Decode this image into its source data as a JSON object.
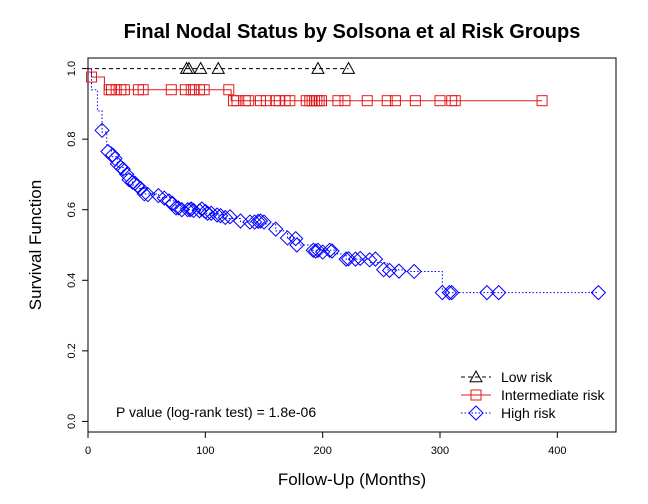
{
  "chart_data": {
    "type": "line",
    "subtype": "kaplan-meier",
    "title": "Final Nodal Status by Solsona et al Risk Groups",
    "xlabel": "Follow-Up (Months)",
    "ylabel": "Survival Function",
    "xlim": [
      0,
      450
    ],
    "ylim": [
      -0.03,
      1.03
    ],
    "xticks": [
      0,
      100,
      200,
      300,
      400
    ],
    "yticks": [
      0.0,
      0.2,
      0.4,
      0.6,
      0.8,
      1.0
    ],
    "xtick_labels": [
      "0",
      "100",
      "200",
      "300",
      "400"
    ],
    "ytick_labels": [
      "0.0",
      "0.2",
      "0.4",
      "0.6",
      "0.8",
      "1.0"
    ],
    "grid": false,
    "legend_position": "bottom-right",
    "annotation": "P value (log-rank test) = 1.8e-06",
    "series": [
      {
        "name": "Low risk",
        "color": "#000000",
        "line_style": "dashed",
        "marker": "triangle",
        "steps": [
          [
            0,
            1.0
          ],
          [
            222,
            1.0
          ]
        ],
        "censored": [
          [
            84,
            1.0
          ],
          [
            86,
            1.0
          ],
          [
            96,
            1.0
          ],
          [
            111,
            1.0
          ],
          [
            196,
            1.0
          ],
          [
            222,
            1.0
          ]
        ]
      },
      {
        "name": "Intermediate risk",
        "color": "#e31a1c",
        "line_style": "solid",
        "marker": "square",
        "steps": [
          [
            0,
            1.0
          ],
          [
            3,
            0.976
          ],
          [
            14,
            0.94
          ],
          [
            120,
            0.94
          ],
          [
            122,
            0.909
          ],
          [
            387,
            0.909
          ]
        ],
        "censored": [
          [
            3,
            0.976
          ],
          [
            18,
            0.94
          ],
          [
            20,
            0.94
          ],
          [
            24,
            0.94
          ],
          [
            28,
            0.94
          ],
          [
            31,
            0.94
          ],
          [
            43,
            0.94
          ],
          [
            47,
            0.94
          ],
          [
            71,
            0.94
          ],
          [
            83,
            0.94
          ],
          [
            88,
            0.94
          ],
          [
            90,
            0.94
          ],
          [
            95,
            0.94
          ],
          [
            99,
            0.94
          ],
          [
            120,
            0.94
          ],
          [
            124,
            0.909
          ],
          [
            127,
            0.909
          ],
          [
            134,
            0.909
          ],
          [
            137,
            0.909
          ],
          [
            147,
            0.909
          ],
          [
            152,
            0.909
          ],
          [
            160,
            0.909
          ],
          [
            163,
            0.909
          ],
          [
            168,
            0.909
          ],
          [
            172,
            0.909
          ],
          [
            186,
            0.909
          ],
          [
            189,
            0.909
          ],
          [
            191,
            0.909
          ],
          [
            193,
            0.909
          ],
          [
            195,
            0.909
          ],
          [
            197,
            0.909
          ],
          [
            199,
            0.909
          ],
          [
            213,
            0.909
          ],
          [
            219,
            0.909
          ],
          [
            238,
            0.909
          ],
          [
            255,
            0.909
          ],
          [
            262,
            0.909
          ],
          [
            279,
            0.909
          ],
          [
            300,
            0.909
          ],
          [
            310,
            0.909
          ],
          [
            313,
            0.909
          ],
          [
            387,
            0.909
          ]
        ]
      },
      {
        "name": "High risk",
        "color": "#0000ff",
        "line_style": "dotted",
        "marker": "diamond",
        "steps": [
          [
            0,
            1.0
          ],
          [
            3,
            0.94
          ],
          [
            8,
            0.88
          ],
          [
            12,
            0.82
          ],
          [
            16,
            0.78
          ],
          [
            20,
            0.75
          ],
          [
            25,
            0.72
          ],
          [
            30,
            0.7
          ],
          [
            38,
            0.67
          ],
          [
            44,
            0.66
          ],
          [
            48,
            0.645
          ],
          [
            60,
            0.635
          ],
          [
            70,
            0.625
          ],
          [
            75,
            0.605
          ],
          [
            85,
            0.6
          ],
          [
            100,
            0.59
          ],
          [
            110,
            0.585
          ],
          [
            115,
            0.575
          ],
          [
            130,
            0.565
          ],
          [
            145,
            0.56
          ],
          [
            160,
            0.54
          ],
          [
            170,
            0.52
          ],
          [
            180,
            0.5
          ],
          [
            190,
            0.485
          ],
          [
            210,
            0.475
          ],
          [
            220,
            0.46
          ],
          [
            240,
            0.45
          ],
          [
            255,
            0.43
          ],
          [
            270,
            0.425
          ],
          [
            302,
            0.365
          ],
          [
            435,
            0.365
          ]
        ],
        "censored": [
          [
            12,
            0.825
          ],
          [
            17,
            0.765
          ],
          [
            21,
            0.755
          ],
          [
            23,
            0.745
          ],
          [
            25,
            0.73
          ],
          [
            28,
            0.72
          ],
          [
            30,
            0.715
          ],
          [
            33,
            0.7
          ],
          [
            35,
            0.685
          ],
          [
            38,
            0.678
          ],
          [
            40,
            0.675
          ],
          [
            42,
            0.668
          ],
          [
            45,
            0.66
          ],
          [
            48,
            0.645
          ],
          [
            51,
            0.643
          ],
          [
            60,
            0.64
          ],
          [
            65,
            0.633
          ],
          [
            69,
            0.625
          ],
          [
            72,
            0.618
          ],
          [
            75,
            0.605
          ],
          [
            77,
            0.605
          ],
          [
            80,
            0.6
          ],
          [
            85,
            0.6
          ],
          [
            87,
            0.6
          ],
          [
            88,
            0.602
          ],
          [
            90,
            0.598
          ],
          [
            95,
            0.597
          ],
          [
            97,
            0.602
          ],
          [
            100,
            0.595
          ],
          [
            102,
            0.59
          ],
          [
            105,
            0.59
          ],
          [
            110,
            0.585
          ],
          [
            113,
            0.583
          ],
          [
            117,
            0.578
          ],
          [
            121,
            0.58
          ],
          [
            130,
            0.568
          ],
          [
            138,
            0.565
          ],
          [
            142,
            0.565
          ],
          [
            145,
            0.567
          ],
          [
            147,
            0.568
          ],
          [
            150,
            0.565
          ],
          [
            160,
            0.545
          ],
          [
            170,
            0.52
          ],
          [
            177,
            0.518
          ],
          [
            178,
            0.5
          ],
          [
            192,
            0.485
          ],
          [
            194,
            0.483
          ],
          [
            196,
            0.485
          ],
          [
            200,
            0.48
          ],
          [
            206,
            0.485
          ],
          [
            208,
            0.483
          ],
          [
            220,
            0.46
          ],
          [
            222,
            0.461
          ],
          [
            228,
            0.46
          ],
          [
            232,
            0.462
          ],
          [
            240,
            0.458
          ],
          [
            245,
            0.46
          ],
          [
            252,
            0.43
          ],
          [
            257,
            0.428
          ],
          [
            265,
            0.426
          ],
          [
            278,
            0.425
          ],
          [
            302,
            0.365
          ],
          [
            308,
            0.365
          ],
          [
            310,
            0.365
          ],
          [
            340,
            0.365
          ],
          [
            350,
            0.365
          ],
          [
            435,
            0.365
          ]
        ]
      }
    ]
  }
}
